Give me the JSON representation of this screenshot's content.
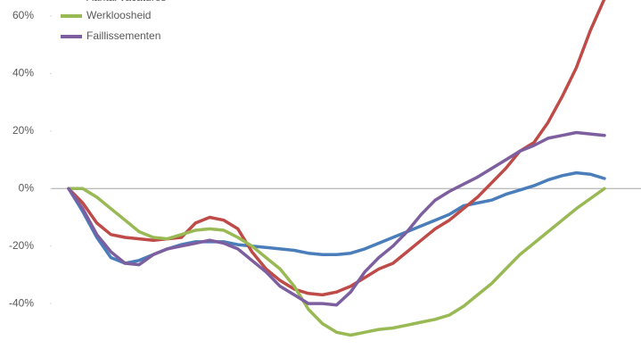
{
  "chart_data": {
    "type": "line",
    "ylim": [
      -58.6,
      65.6
    ],
    "yticks": [
      {
        "value": -40,
        "label": "-40%"
      },
      {
        "value": -20,
        "label": "-20%"
      },
      {
        "value": 0,
        "label": "0%"
      },
      {
        "value": 20,
        "label": "20%"
      },
      {
        "value": 40,
        "label": "40%"
      },
      {
        "value": 60,
        "label": "60%"
      }
    ],
    "series": [
      {
        "color": "#4a7ebb",
        "values": [
          0,
          -8,
          -17,
          -24,
          -26,
          -25,
          -23,
          -21,
          -19.5,
          -18.5,
          -18.5,
          -18.5,
          -19.5,
          -20,
          -20.5,
          -21,
          -21.5,
          -22.5,
          -23,
          -23,
          -22.5,
          -21,
          -19,
          -17,
          -15,
          -13,
          -11,
          -9,
          -6,
          -5,
          -4,
          -2,
          -0.5,
          1,
          3,
          4.5,
          5.5,
          5,
          3.5
        ]
      },
      {
        "name": "Aantal vacatures",
        "color": "#be4b48",
        "values": [
          0,
          -5,
          -12,
          -16,
          -17,
          -17.5,
          -18,
          -17.5,
          -17,
          -12,
          -10,
          -11,
          -14,
          -22,
          -28,
          -32,
          -35,
          -36.5,
          -37,
          -36,
          -34,
          -31,
          -28,
          -26,
          -22,
          -18,
          -14,
          -11,
          -7,
          -3,
          2,
          7,
          13,
          16,
          23,
          32,
          42,
          55,
          66
        ]
      },
      {
        "name": "Werkloosheid",
        "color": "#98b954",
        "values": [
          0,
          0,
          -3,
          -7,
          -11,
          -15,
          -17,
          -17.5,
          -16,
          -14.5,
          -14,
          -14.5,
          -17,
          -20,
          -24,
          -28,
          -34,
          -42,
          -47,
          -50,
          -51,
          -50,
          -49,
          -48.5,
          -47.5,
          -46.5,
          -45.5,
          -44,
          -41,
          -37,
          -33,
          -28,
          -23,
          -19,
          -15,
          -11,
          -7,
          -3.5,
          0
        ]
      },
      {
        "name": "Faillissementen",
        "color": "#7d5fa0",
        "values": [
          0,
          -7,
          -16,
          -22,
          -26,
          -26.5,
          -23,
          -21,
          -20,
          -19,
          -18,
          -19,
          -21,
          -25,
          -29,
          -34,
          -37,
          -40,
          -40,
          -40.5,
          -36,
          -29,
          -24,
          -20,
          -15,
          -9,
          -4,
          -1,
          1.5,
          4,
          7,
          10,
          13,
          15,
          17.5,
          18.5,
          19.5,
          19,
          18.5
        ]
      }
    ]
  }
}
